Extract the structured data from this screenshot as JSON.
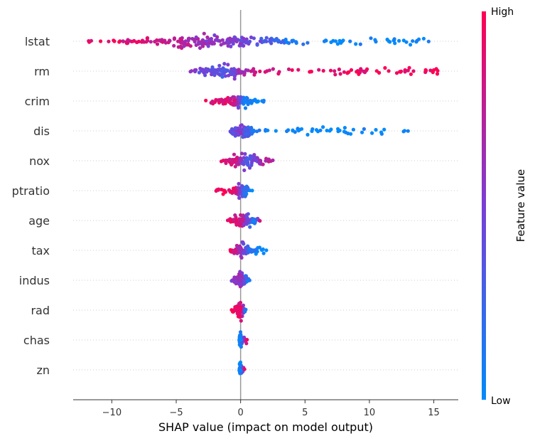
{
  "chart_data": {
    "type": "scatter",
    "subtype": "shap-beeswarm",
    "xlabel": "SHAP value (impact on model output)",
    "xlim": [
      -13.0,
      16.9
    ],
    "xticks": [
      -10,
      -5,
      0,
      5,
      10,
      15
    ],
    "xtick_labels": [
      "−10",
      "−5",
      "0",
      "5",
      "10",
      "15"
    ],
    "features": [
      "lstat",
      "rm",
      "crim",
      "dis",
      "nox",
      "ptratio",
      "age",
      "tax",
      "indus",
      "rad",
      "chas",
      "zn"
    ],
    "colorbar": {
      "title": "Feature value",
      "high_label": "High",
      "low_label": "Low",
      "high_color": "#ff0052",
      "low_color": "#008bfb"
    },
    "grid": "horizontal dotted per feature row",
    "zero_line": true,
    "series": [
      {
        "feature": "lstat",
        "range": [
          -11.8,
          14.6
        ],
        "high_end": "negative",
        "dense_range": [
          -9,
          4.5
        ],
        "sample_points": [
          [
            -11.8,
            0.95
          ],
          [
            -11.6,
            0.95
          ],
          [
            -9.8,
            0.9
          ],
          [
            -7.5,
            0.85
          ],
          [
            -5.5,
            0.8
          ],
          [
            -3.0,
            0.6
          ],
          [
            0,
            0.5
          ],
          [
            2.0,
            0.3
          ],
          [
            4.3,
            0.1
          ],
          [
            6.5,
            0.05
          ],
          [
            8.5,
            0.03
          ],
          [
            10.5,
            0.02
          ],
          [
            11.5,
            0.0
          ],
          [
            12.3,
            0.0
          ],
          [
            13.7,
            0.0
          ],
          [
            14.6,
            0.0
          ]
        ]
      },
      {
        "feature": "rm",
        "range": [
          -3.9,
          15.3
        ],
        "high_end": "positive",
        "dense_range": [
          -3.5,
          1.5
        ],
        "sample_points": [
          [
            -3.9,
            0.5
          ],
          [
            -2.0,
            0.4
          ],
          [
            -1.5,
            0.3
          ],
          [
            0,
            0.6
          ],
          [
            1.5,
            0.85
          ],
          [
            3.0,
            0.9
          ],
          [
            5.5,
            0.95
          ],
          [
            7.0,
            0.95
          ],
          [
            9.0,
            0.95
          ],
          [
            11.5,
            0.95
          ],
          [
            13.0,
            0.95
          ],
          [
            14.4,
            0.95
          ],
          [
            15.3,
            1.0
          ]
        ]
      },
      {
        "feature": "crim",
        "range": [
          -2.7,
          1.8
        ],
        "high_end": "negative",
        "dense_range": [
          -1.5,
          1.0
        ],
        "sample_points": [
          [
            -2.7,
            0.95
          ],
          [
            -1.5,
            0.9
          ],
          [
            -0.5,
            0.8
          ],
          [
            0.2,
            0.1
          ],
          [
            1.0,
            0.0
          ],
          [
            1.8,
            0.0
          ]
        ]
      },
      {
        "feature": "dis",
        "range": [
          -0.8,
          13.0
        ],
        "high_end": "negative",
        "dense_range": [
          -0.8,
          1.2
        ],
        "sample_points": [
          [
            -0.8,
            0.4
          ],
          [
            0,
            0.5
          ],
          [
            1.0,
            0.1
          ],
          [
            2.1,
            0.0
          ],
          [
            4.5,
            0.0
          ],
          [
            6.2,
            0.0
          ],
          [
            6.7,
            0.0
          ],
          [
            7.7,
            0.0
          ],
          [
            13.0,
            0.0
          ]
        ]
      },
      {
        "feature": "nox",
        "range": [
          -1.5,
          2.5
        ],
        "high_end": "negative",
        "dense_range": [
          -1.2,
          2.0
        ],
        "sample_points": [
          [
            -1.5,
            0.9
          ],
          [
            -0.5,
            0.85
          ],
          [
            0.5,
            0.3
          ],
          [
            1.5,
            0.6
          ],
          [
            2.5,
            0.8
          ]
        ]
      },
      {
        "feature": "ptratio",
        "range": [
          -1.9,
          0.9
        ],
        "high_end": "negative",
        "dense_range": [
          -0.8,
          0.8
        ],
        "sample_points": [
          [
            -1.9,
            0.95
          ],
          [
            -0.5,
            0.9
          ],
          [
            0.3,
            0.2
          ],
          [
            0.9,
            0.05
          ]
        ]
      },
      {
        "feature": "age",
        "range": [
          -1.0,
          1.5
        ],
        "high_end": "negative",
        "dense_range": [
          -0.8,
          1.2
        ],
        "sample_points": [
          [
            -1.0,
            0.9
          ],
          [
            0,
            0.85
          ],
          [
            1.0,
            0.05
          ],
          [
            1.5,
            0.85
          ]
        ]
      },
      {
        "feature": "tax",
        "range": [
          -0.8,
          2.0
        ],
        "high_end": "negative",
        "dense_range": [
          -0.6,
          1.0
        ],
        "sample_points": [
          [
            -0.8,
            0.9
          ],
          [
            0,
            0.6
          ],
          [
            0.8,
            0.1
          ],
          [
            2.0,
            0.0
          ]
        ]
      },
      {
        "feature": "indus",
        "range": [
          -0.7,
          0.7
        ],
        "high_end": "negative",
        "dense_range": [
          -0.5,
          0.5
        ],
        "sample_points": [
          [
            -0.7,
            0.6
          ],
          [
            0,
            0.6
          ],
          [
            0.7,
            0.0
          ]
        ]
      },
      {
        "feature": "rad",
        "range": [
          -0.7,
          0.4
        ],
        "high_end": "mixed",
        "dense_range": [
          -0.4,
          0.3
        ],
        "sample_points": [
          [
            -0.7,
            0.9
          ],
          [
            0,
            0.9
          ],
          [
            0.4,
            0.1
          ]
        ]
      },
      {
        "feature": "chas",
        "range": [
          -0.1,
          0.5
        ],
        "high_end": "positive",
        "dense_range": [
          -0.1,
          0.1
        ],
        "sample_points": [
          [
            -0.1,
            0.0
          ],
          [
            0,
            0.0
          ],
          [
            0.5,
            1.0
          ]
        ]
      },
      {
        "feature": "zn",
        "range": [
          -0.1,
          0.3
        ],
        "high_end": "positive",
        "dense_range": [
          -0.1,
          0.1
        ],
        "sample_points": [
          [
            -0.1,
            0.0
          ],
          [
            0,
            0.0
          ],
          [
            0.3,
            1.0
          ]
        ]
      }
    ]
  }
}
